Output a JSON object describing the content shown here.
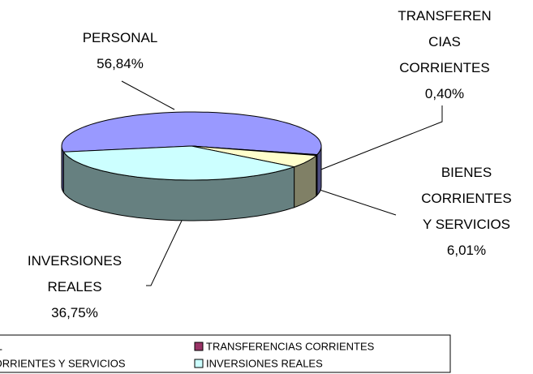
{
  "chart_data": {
    "type": "pie3d",
    "categories": [
      "PERSONAL",
      "TRANSFERENCIAS CORRIENTES",
      "BIENES CORRIENTES Y SERVICIOS",
      "INVERSIONES REALES"
    ],
    "values": [
      56.84,
      0.4,
      6.01,
      36.75
    ],
    "value_labels": [
      "56,84%",
      "0,40%",
      "6,01%",
      "36,75%"
    ],
    "colors": [
      "#9999ff",
      "#993366",
      "#ffffcc",
      "#ccffff"
    ],
    "legend": "bottom"
  }
}
